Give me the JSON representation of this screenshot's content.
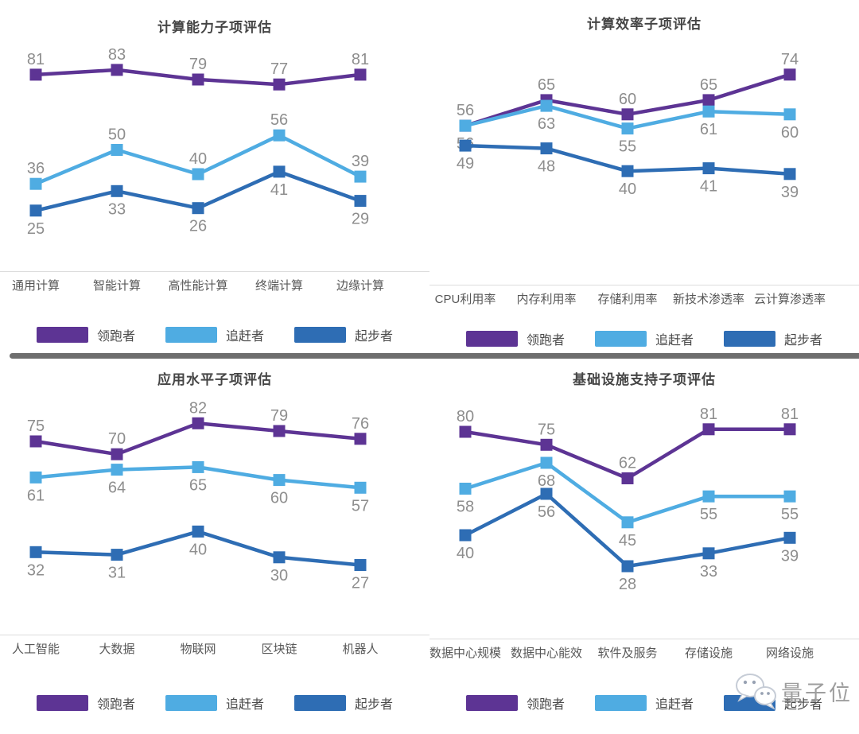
{
  "chart_data": [
    {
      "type": "line",
      "title": "计算能力子项评估",
      "categories": [
        "通用计算",
        "智能计算",
        "高性能计算",
        "终端计算",
        "边缘计算"
      ],
      "series": [
        {
          "name": "领跑者",
          "color": "#5D3494",
          "values": [
            81,
            83,
            79,
            77,
            81
          ],
          "label_pos": "above"
        },
        {
          "name": "追赶者",
          "color": "#4FACE2",
          "values": [
            36,
            50,
            40,
            56,
            39
          ],
          "label_pos": "above"
        },
        {
          "name": "起步者",
          "color": "#2E6DB4",
          "values": [
            25,
            33,
            26,
            41,
            29
          ],
          "label_pos": "below"
        }
      ],
      "ylim": [
        0,
        100
      ],
      "grid": false,
      "legend_position": "bottom"
    },
    {
      "type": "line",
      "title": "计算效率子项评估",
      "categories": [
        "CPU利用率",
        "内存利用率",
        "存储利用率",
        "新技术渗透率",
        "云计算渗透率"
      ],
      "series": [
        {
          "name": "领跑者",
          "color": "#5D3494",
          "values": [
            56,
            65,
            60,
            65,
            74
          ],
          "label_pos": "above"
        },
        {
          "name": "追赶者",
          "color": "#4FACE2",
          "values": [
            56,
            63,
            55,
            61,
            60
          ],
          "label_pos": "below"
        },
        {
          "name": "起步者",
          "color": "#2E6DB4",
          "values": [
            49,
            48,
            40,
            41,
            39
          ],
          "label_pos": "below"
        }
      ],
      "ylim": [
        0,
        100
      ],
      "grid": false,
      "legend_position": "bottom"
    },
    {
      "type": "line",
      "title": "应用水平子项评估",
      "categories": [
        "人工智能",
        "大数据",
        "物联网",
        "区块链",
        "机器人"
      ],
      "series": [
        {
          "name": "领跑者",
          "color": "#5D3494",
          "values": [
            75,
            70,
            82,
            79,
            76
          ],
          "label_pos": "above"
        },
        {
          "name": "追赶者",
          "color": "#4FACE2",
          "values": [
            61,
            64,
            65,
            60,
            57
          ],
          "label_pos": "below"
        },
        {
          "name": "起步者",
          "color": "#2E6DB4",
          "values": [
            32,
            31,
            40,
            30,
            27
          ],
          "label_pos": "below"
        }
      ],
      "ylim": [
        0,
        100
      ],
      "grid": false,
      "legend_position": "bottom"
    },
    {
      "type": "line",
      "title": "基础设施支持子项评估",
      "categories": [
        "数据中心规模",
        "数据中心能效",
        "软件及服务",
        "存储设施",
        "网络设施"
      ],
      "series": [
        {
          "name": "领跑者",
          "color": "#5D3494",
          "values": [
            80,
            75,
            62,
            81,
            81
          ],
          "label_pos": "above"
        },
        {
          "name": "追赶者",
          "color": "#4FACE2",
          "values": [
            58,
            68,
            45,
            55,
            55
          ],
          "label_pos": "below"
        },
        {
          "name": "起步者",
          "color": "#2E6DB4",
          "values": [
            40,
            56,
            28,
            33,
            39
          ],
          "label_pos": "below"
        }
      ],
      "ylim": [
        0,
        100
      ],
      "grid": false,
      "legend_position": "bottom"
    }
  ],
  "legend_labels": [
    "领跑者",
    "追赶者",
    "起步者"
  ],
  "watermark": {
    "text": "量子位",
    "icon": "wechat-icon"
  },
  "colors": {
    "leader": "#5D3494",
    "chaser": "#4FACE2",
    "starter": "#2E6DB4",
    "divider": "#6E6E6E",
    "axis_line": "#DCDCDC",
    "value_label": "#8E8E8E",
    "category_label": "#575757",
    "title": "#454545",
    "watermark_text": "#9E9E9E"
  }
}
